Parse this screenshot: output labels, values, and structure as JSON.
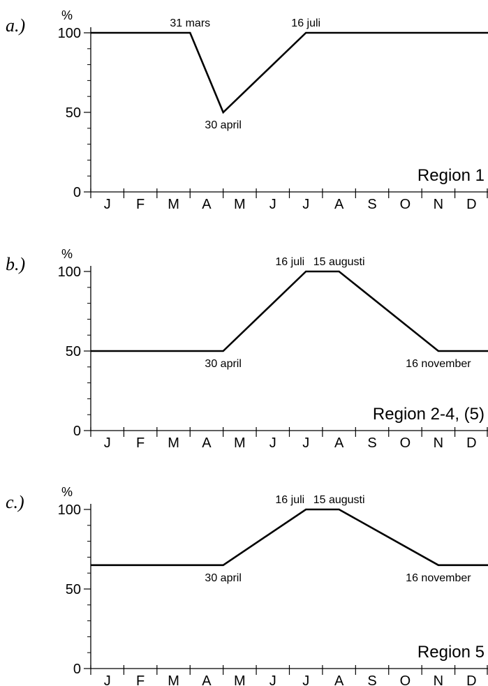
{
  "chart_data": [
    {
      "type": "line",
      "panel_label": "a.)",
      "y_unit": "%",
      "ylim": [
        0,
        100
      ],
      "yticks": [
        0,
        50,
        100
      ],
      "x_categories": [
        "J",
        "F",
        "M",
        "A",
        "M",
        "J",
        "J",
        "A",
        "S",
        "O",
        "N",
        "D"
      ],
      "region_label": "Region 1",
      "points": [
        {
          "x": 0,
          "y": 100
        },
        {
          "x": 3.0,
          "y": 100
        },
        {
          "x": 4.0,
          "y": 50
        },
        {
          "x": 6.5,
          "y": 100
        },
        {
          "x": 12,
          "y": 100
        }
      ],
      "annotations": [
        {
          "text": "31 mars",
          "x": 3.0,
          "y": 100,
          "position": "above"
        },
        {
          "text": "30 april",
          "x": 4.0,
          "y": 50,
          "position": "below"
        },
        {
          "text": "16 juli",
          "x": 6.5,
          "y": 100,
          "position": "above"
        }
      ]
    },
    {
      "type": "line",
      "panel_label": "b.)",
      "y_unit": "%",
      "ylim": [
        0,
        100
      ],
      "yticks": [
        0,
        50,
        100
      ],
      "x_categories": [
        "J",
        "F",
        "M",
        "A",
        "M",
        "J",
        "J",
        "A",
        "S",
        "O",
        "N",
        "D"
      ],
      "region_label": "Region 2-4, (5)",
      "points": [
        {
          "x": 0,
          "y": 50
        },
        {
          "x": 4.0,
          "y": 50
        },
        {
          "x": 6.5,
          "y": 100
        },
        {
          "x": 7.5,
          "y": 100
        },
        {
          "x": 10.5,
          "y": 50
        },
        {
          "x": 12,
          "y": 50
        }
      ],
      "annotations": [
        {
          "text": "16 juli",
          "x": 6.5,
          "y": 100,
          "position": "above-left"
        },
        {
          "text": "15 augusti",
          "x": 7.5,
          "y": 100,
          "position": "above"
        },
        {
          "text": "30 april",
          "x": 4.0,
          "y": 50,
          "position": "below"
        },
        {
          "text": "16 november",
          "x": 10.5,
          "y": 50,
          "position": "below"
        }
      ]
    },
    {
      "type": "line",
      "panel_label": "c.)",
      "y_unit": "%",
      "ylim": [
        0,
        100
      ],
      "yticks": [
        0,
        50,
        100
      ],
      "x_categories": [
        "J",
        "F",
        "M",
        "A",
        "M",
        "J",
        "J",
        "A",
        "S",
        "O",
        "N",
        "D"
      ],
      "region_label": "Region 5",
      "points": [
        {
          "x": 0,
          "y": 65
        },
        {
          "x": 4.0,
          "y": 65
        },
        {
          "x": 6.5,
          "y": 100
        },
        {
          "x": 7.5,
          "y": 100
        },
        {
          "x": 10.5,
          "y": 65
        },
        {
          "x": 12,
          "y": 65
        }
      ],
      "annotations": [
        {
          "text": "16 juli",
          "x": 6.5,
          "y": 100,
          "position": "above-left"
        },
        {
          "text": "15 augusti",
          "x": 7.5,
          "y": 100,
          "position": "above"
        },
        {
          "text": "30 april",
          "x": 4.0,
          "y": 65,
          "position": "below"
        },
        {
          "text": "16 november",
          "x": 10.5,
          "y": 65,
          "position": "below"
        }
      ]
    }
  ]
}
